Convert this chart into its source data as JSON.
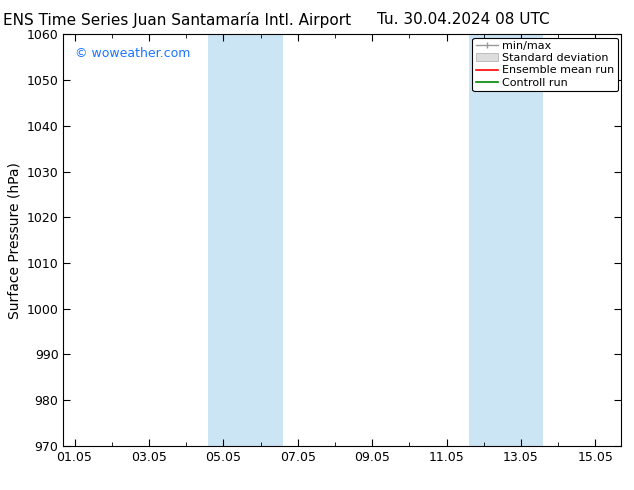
{
  "title_left": "ENS Time Series Juan Santamaría Intl. Airport",
  "title_right": "Tu. 30.04.2024 08 UTC",
  "ylabel": "Surface Pressure (hPa)",
  "ylim": [
    970,
    1060
  ],
  "yticks": [
    970,
    980,
    990,
    1000,
    1010,
    1020,
    1030,
    1040,
    1050,
    1060
  ],
  "xtick_labels": [
    "01.05",
    "03.05",
    "05.05",
    "07.05",
    "09.05",
    "11.05",
    "13.05",
    "15.05"
  ],
  "xtick_positions": [
    0,
    2,
    4,
    6,
    8,
    10,
    12,
    14
  ],
  "xlim": [
    -0.3,
    14.7
  ],
  "shade_bands": [
    {
      "x_start": 3.6,
      "x_end": 5.6
    },
    {
      "x_start": 10.6,
      "x_end": 12.6
    }
  ],
  "shade_color": "#cce5f5",
  "background_color": "#ffffff",
  "watermark": "© woweather.com",
  "watermark_color": "#1a75ff",
  "legend_items": [
    {
      "label": "min/max",
      "color": "#999999",
      "type": "minmax"
    },
    {
      "label": "Standard deviation",
      "color": "#cccccc",
      "type": "fill"
    },
    {
      "label": "Ensemble mean run",
      "color": "#ff0000",
      "type": "line"
    },
    {
      "label": "Controll run",
      "color": "#008800",
      "type": "line"
    }
  ],
  "title_fontsize": 11,
  "tick_fontsize": 9,
  "ylabel_fontsize": 10,
  "legend_fontsize": 8
}
